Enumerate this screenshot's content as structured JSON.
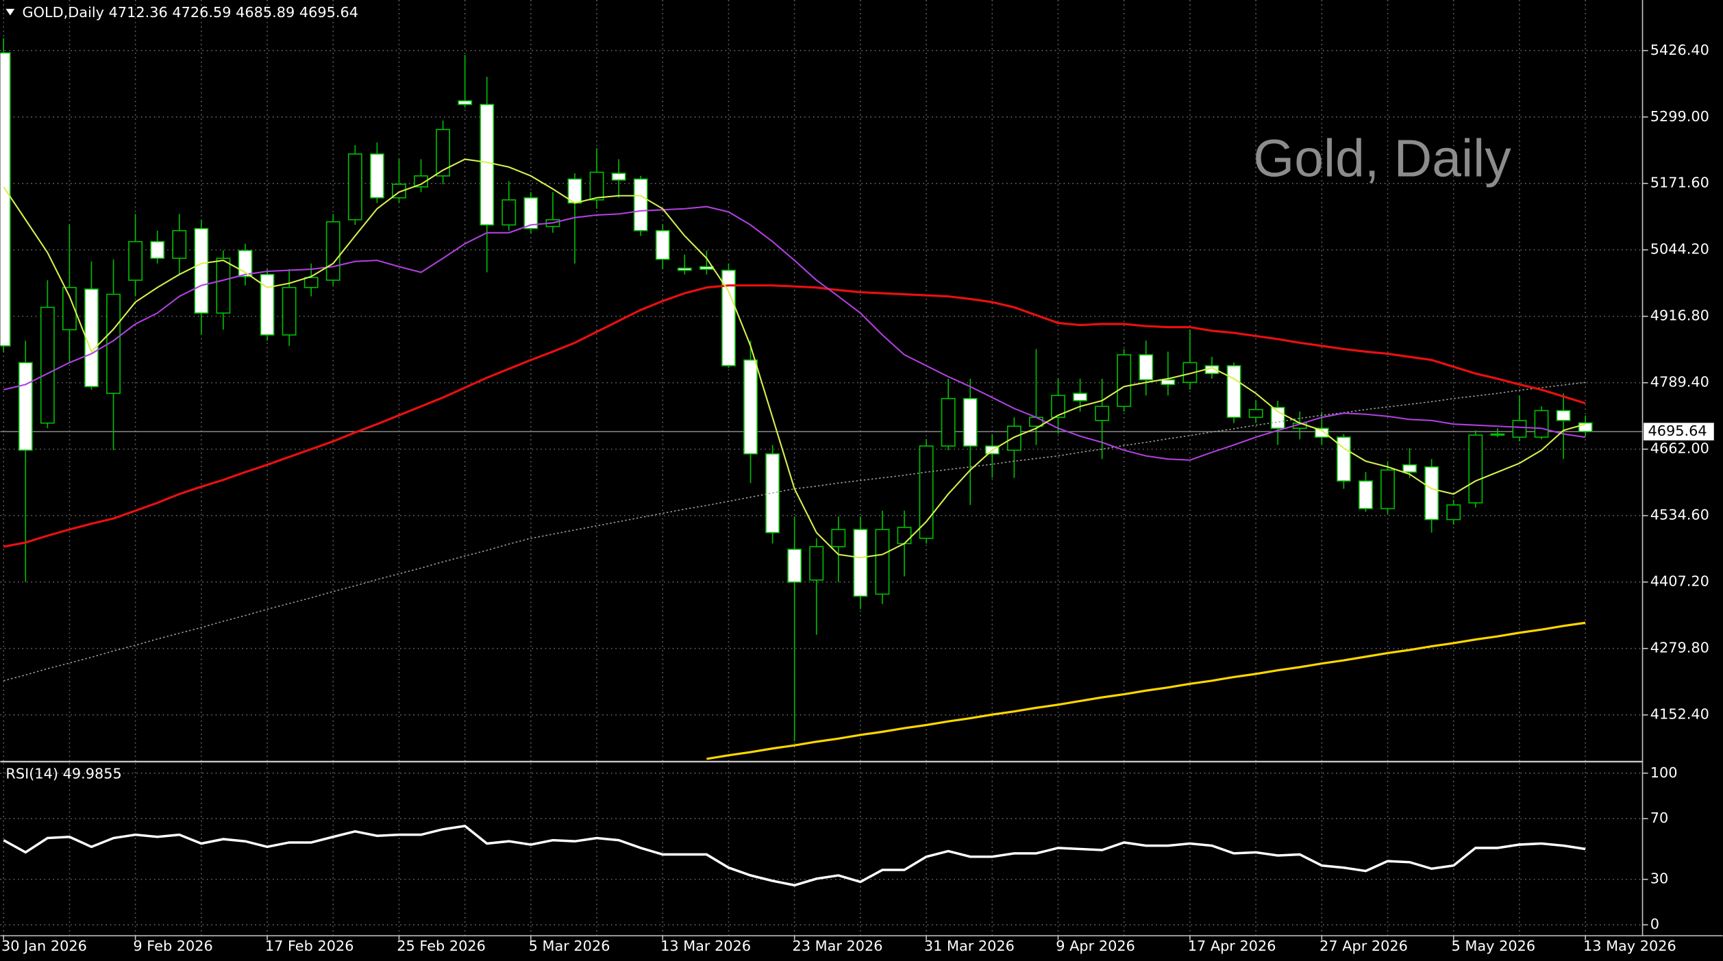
{
  "chart_data": [
    {
      "type": "candlestick",
      "title": "GOLD,Daily",
      "watermark": "Gold, Daily",
      "categories": [
        "30 Jan 2026",
        null,
        null,
        null,
        null,
        null,
        "9 Feb 2026",
        null,
        null,
        null,
        null,
        null,
        "17 Feb 2026",
        null,
        null,
        null,
        null,
        null,
        "25 Feb 2026",
        null,
        null,
        null,
        null,
        null,
        "5 Mar 2026",
        null,
        null,
        null,
        null,
        null,
        "13 Mar 2026",
        null,
        null,
        null,
        null,
        null,
        "23 Mar 2026",
        null,
        null,
        null,
        null,
        null,
        "31 Mar 2026",
        null,
        null,
        null,
        null,
        null,
        "9 Apr 2026",
        null,
        null,
        null,
        null,
        null,
        "17 Apr 2026",
        null,
        null,
        null,
        null,
        null,
        "27 Apr 2026",
        null,
        null,
        null,
        null,
        null,
        "5 May 2026",
        null,
        null,
        null,
        null,
        null,
        "13 May 2026"
      ],
      "open": [
        5422,
        4828,
        4712,
        4891,
        4969,
        4769,
        4986,
        5060,
        5028,
        5085,
        4923,
        5043,
        4997,
        4881,
        4972,
        4986,
        5102,
        5228,
        5144,
        5165,
        5186,
        5330,
        5323,
        5092,
        5144,
        5089,
        5180,
        5140,
        5191,
        5180,
        5081,
        5009,
        5012,
        5005,
        4833,
        4653,
        4470,
        4411,
        4475,
        4508,
        4384,
        4481,
        4491,
        4668,
        4759,
        4668,
        4660,
        4706,
        4723,
        4769,
        4717,
        4744,
        4843,
        4795,
        4790,
        4822,
        4822,
        4723,
        4742,
        4702,
        4702,
        4685,
        4601,
        4548,
        4632,
        4628,
        4527,
        4559,
        4689,
        4685,
        4685,
        4736,
        4712.36
      ],
      "high": [
        5450,
        4870,
        4986,
        5092,
        5022,
        5026,
        5113,
        5081,
        5113,
        5102,
        5043,
        5056,
        5007,
        5007,
        5018,
        5113,
        5245,
        5250,
        5218,
        5218,
        5292,
        5418,
        5376,
        5176,
        5155,
        5155,
        5191,
        5239,
        5218,
        5186,
        5092,
        5035,
        5043,
        5018,
        4870,
        4670,
        4533,
        4491,
        4533,
        4533,
        4544,
        4544,
        4681,
        4797,
        4797,
        4691,
        4723,
        4854,
        4797,
        4797,
        4797,
        4854,
        4870,
        4849,
        4891,
        4839,
        4828,
        4755,
        4755,
        4734,
        4734,
        4691,
        4618,
        4639,
        4664,
        4643,
        4565,
        4698,
        4702,
        4765,
        4744,
        4769,
        4726.59
      ],
      "low": [
        4849,
        4407,
        4702,
        4828,
        4776,
        4660,
        4955,
        5018,
        4997,
        4881,
        4891,
        4976,
        4870,
        4860,
        4955,
        4976,
        5092,
        5134,
        5134,
        5155,
        5170,
        5317,
        5001,
        5081,
        5077,
        5077,
        5018,
        5123,
        5144,
        5071,
        5007,
        4997,
        4997,
        4818,
        4597,
        4481,
        4102,
        4306,
        4407,
        4355,
        4365,
        4418,
        4481,
        4660,
        4555,
        4607,
        4607,
        4670,
        4691,
        4734,
        4643,
        4734,
        4765,
        4765,
        4776,
        4797,
        4712,
        4712,
        4670,
        4681,
        4670,
        4586,
        4542,
        4538,
        4607,
        4502,
        4517,
        4550,
        4685,
        4677,
        4681,
        4643,
        4685.89
      ],
      "close": [
        4860,
        4660,
        4934,
        4972,
        4782,
        4959,
        5060,
        5028,
        5081,
        4923,
        5028,
        4993,
        4881,
        4972,
        4991,
        5098,
        5228,
        5144,
        5170,
        5186,
        5275,
        5323,
        5092,
        5140,
        5085,
        5102,
        5134,
        5193,
        5178,
        5081,
        5026,
        5005,
        5007,
        4822,
        4653,
        4502,
        4407,
        4475,
        4508,
        4380,
        4508,
        4512,
        4668,
        4759,
        4668,
        4653,
        4706,
        4723,
        4765,
        4755,
        4744,
        4843,
        4795,
        4786,
        4828,
        4807,
        4723,
        4738,
        4702,
        4712,
        4685,
        4601,
        4548,
        4622,
        4618,
        4527,
        4555,
        4689,
        4691,
        4717,
        4736,
        4717,
        4695.64
      ],
      "up_color": "#000000",
      "down_color": "#ffffff",
      "outline_color": "#00c000",
      "series": [
        {
          "color": "#a0a0a0",
          "style": "dotted",
          "values": [
            4218,
            4229,
            4241,
            4252,
            4263,
            4275,
            4286,
            4298,
            4309,
            4320,
            4332,
            4343,
            4355,
            4366,
            4377,
            4389,
            4400,
            4412,
            4423,
            4434,
            4446,
            4457,
            4468,
            4480,
            4491,
            4499,
            4507,
            4515,
            4523,
            4531,
            4539,
            4547,
            4554,
            4562,
            4570,
            4578,
            4586,
            4591,
            4597,
            4602,
            4607,
            4612,
            4618,
            4623,
            4628,
            4633,
            4639,
            4644,
            4649,
            4656,
            4662,
            4669,
            4675,
            4682,
            4688,
            4695,
            4701,
            4708,
            4714,
            4721,
            4727,
            4732,
            4738,
            4743,
            4748,
            4753,
            4759,
            4764,
            4769,
            4775,
            4780,
            4785,
            4790
          ]
        },
        {
          "color": "#ffd700",
          "style": "thick",
          "values": [
            null,
            null,
            null,
            null,
            null,
            null,
            null,
            null,
            null,
            null,
            null,
            null,
            null,
            null,
            null,
            null,
            null,
            null,
            null,
            null,
            null,
            null,
            null,
            null,
            null,
            null,
            null,
            null,
            null,
            null,
            null,
            null,
            4068,
            4075,
            4081,
            4088,
            4094,
            4101,
            4107,
            4114,
            4120,
            4127,
            4133,
            4140,
            4146,
            4153,
            4159,
            4166,
            4172,
            4179,
            4186,
            4192,
            4199,
            4205,
            4212,
            4218,
            4225,
            4231,
            4238,
            4244,
            4251,
            4257,
            4264,
            4271,
            4277,
            4284,
            4290,
            4297,
            4303,
            4310,
            4316,
            4323,
            4329
          ]
        },
        {
          "color": "#e81010",
          "style": "thick",
          "values": [
            4475,
            4483,
            4496,
            4508,
            4519,
            4529,
            4544,
            4559,
            4576,
            4590,
            4603,
            4618,
            4632,
            4647,
            4662,
            4677,
            4694,
            4710,
            4727,
            4744,
            4761,
            4780,
            4799,
            4816,
            4833,
            4849,
            4866,
            4887,
            4908,
            4929,
            4946,
            4961,
            4972,
            4976,
            4976,
            4976,
            4974,
            4972,
            4967,
            4963,
            4961,
            4959,
            4957,
            4955,
            4950,
            4944,
            4934,
            4919,
            4904,
            4900,
            4902,
            4902,
            4898,
            4896,
            4896,
            4889,
            4885,
            4879,
            4873,
            4866,
            4860,
            4854,
            4849,
            4845,
            4839,
            4833,
            4820,
            4807,
            4797,
            4786,
            4776,
            4763,
            4750
          ]
        },
        {
          "color": "#b040e0",
          "style": "solid",
          "values": [
            4776,
            4786,
            4807,
            4828,
            4845,
            4870,
            4902,
            4923,
            4955,
            4976,
            4986,
            4997,
            5003,
            5005,
            5007,
            5012,
            5022,
            5024,
            5012,
            5001,
            5028,
            5056,
            5077,
            5077,
            5092,
            5096,
            5106,
            5111,
            5113,
            5119,
            5121,
            5123,
            5127,
            5117,
            5092,
            5060,
            5024,
            4986,
            4955,
            4923,
            4881,
            4843,
            4822,
            4801,
            4782,
            4761,
            4740,
            4723,
            4702,
            4687,
            4675,
            4660,
            4649,
            4643,
            4641,
            4656,
            4670,
            4685,
            4698,
            4710,
            4723,
            4731,
            4729,
            4725,
            4719,
            4717,
            4710,
            4708,
            4706,
            4704,
            4702,
            4691,
            4685
          ]
        },
        {
          "color": "#d8f050",
          "style": "solid",
          "values": [
            5165,
            5102,
            5039,
            4955,
            4849,
            4892,
            4944,
            4972,
            4997,
            5018,
            5024,
            5001,
            4972,
            4980,
            4993,
            5018,
            5071,
            5123,
            5155,
            5170,
            5197,
            5218,
            5212,
            5203,
            5186,
            5161,
            5134,
            5144,
            5148,
            5148,
            5123,
            5071,
            5028,
            4965,
            4860,
            4723,
            4586,
            4502,
            4460,
            4454,
            4460,
            4481,
            4523,
            4576,
            4622,
            4660,
            4685,
            4702,
            4727,
            4744,
            4755,
            4782,
            4790,
            4797,
            4807,
            4818,
            4797,
            4769,
            4734,
            4712,
            4698,
            4664,
            4639,
            4628,
            4614,
            4586,
            4576,
            4601,
            4618,
            4635,
            4660,
            4698,
            4710
          ]
        }
      ],
      "ylim": [
        4063.8,
        5523.3
      ],
      "yticks": [
        {
          "value": 5426.4,
          "label": "5426.40"
        },
        {
          "value": 5299,
          "label": "5299.00"
        },
        {
          "value": 5171.6,
          "label": "5171.60"
        },
        {
          "value": 5044.2,
          "label": "5044.20"
        },
        {
          "value": 4916.8,
          "label": "4916.80"
        },
        {
          "value": 4789.4,
          "label": "4789.40"
        },
        {
          "value": 4662,
          "label": "4662.00"
        },
        {
          "value": 4534.6,
          "label": "4534.60"
        },
        {
          "value": 4407.2,
          "label": "4407.20"
        },
        {
          "value": 4279.8,
          "label": "4279.80"
        },
        {
          "value": 4152.4,
          "label": "4152.40"
        }
      ],
      "grid": true
    },
    {
      "type": "line",
      "title": "RSI(14)",
      "color": "#ffffff",
      "values": [
        55.8,
        47.8,
        57.2,
        58,
        51.4,
        57.2,
        59.4,
        58,
        59.4,
        53.6,
        56.5,
        55.1,
        51.4,
        54.3,
        54.3,
        58,
        61.6,
        58.7,
        59.4,
        59.4,
        63,
        65.2,
        53.6,
        55.1,
        52.9,
        55.8,
        55.1,
        57.2,
        55.8,
        50.7,
        46.4,
        46.4,
        46.4,
        37.7,
        32.6,
        29,
        26.1,
        30.4,
        32.6,
        28.3,
        36.2,
        36.2,
        44.9,
        48.6,
        44.9,
        44.9,
        47.1,
        47.1,
        50.7,
        50,
        49.3,
        54.3,
        52.2,
        52.2,
        53.6,
        52.2,
        47.1,
        47.8,
        45.7,
        46.4,
        39.1,
        37.7,
        35.5,
        42,
        41.3,
        37,
        39.1,
        50.7,
        50.7,
        52.9,
        53.6,
        52.2,
        49.9855
      ],
      "ylim": [
        -7.2,
        106.5
      ],
      "yticks": [
        100,
        70,
        30,
        0
      ],
      "grid": true
    }
  ]
}
